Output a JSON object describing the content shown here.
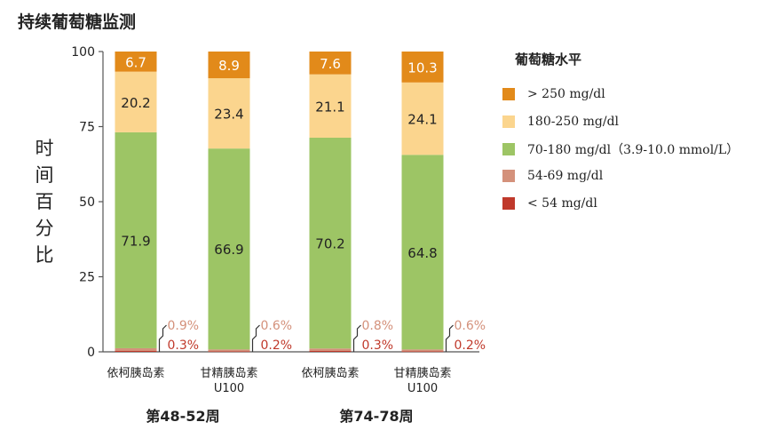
{
  "chart_data": {
    "type": "bar",
    "stacked": true,
    "title": "持续葡萄糖监测",
    "ylabel": "时间百分比",
    "ylim": [
      0,
      100
    ],
    "yticks": [
      0,
      25,
      50,
      75,
      100
    ],
    "categories": [
      {
        "label": [
          "依柯胰岛素"
        ],
        "group": "第48-52周"
      },
      {
        "label": [
          "甘精胰岛素",
          "U100"
        ],
        "group": "第48-52周"
      },
      {
        "label": [
          "依柯胰岛素"
        ],
        "group": "第74-78周"
      },
      {
        "label": [
          "甘精胰岛素",
          "U100"
        ],
        "group": "第74-78周"
      }
    ],
    "groups": [
      "第48-52周",
      "第74-78周"
    ],
    "legend_title": "葡萄糖水平",
    "series": [
      {
        "name": "< 54 mg/dl",
        "color": "#c0392b",
        "values": [
          0.3,
          0.2,
          0.3,
          0.2
        ],
        "labels": [
          "0.3%",
          "0.2%",
          "0.3%",
          "0.2%"
        ],
        "label_style": "outside"
      },
      {
        "name": "54-69 mg/dl",
        "color": "#d4917b",
        "values": [
          0.9,
          0.6,
          0.8,
          0.6
        ],
        "labels": [
          "0.9%",
          "0.6%",
          "0.8%",
          "0.6%"
        ],
        "label_style": "outside"
      },
      {
        "name": "70-180 mg/dl（3.9-10.0 mmol/L）",
        "color": "#9dc565",
        "values": [
          71.9,
          66.9,
          70.2,
          64.8
        ],
        "labels": [
          "71.9",
          "66.9",
          "70.2",
          "64.8"
        ],
        "label_style": "inside"
      },
      {
        "name": "180-250 mg/dl",
        "color": "#fbd58e",
        "values": [
          20.2,
          23.4,
          21.1,
          24.1
        ],
        "labels": [
          "20.2",
          "23.4",
          "21.1",
          "24.1"
        ],
        "label_style": "inside"
      },
      {
        "name": "> 250 mg/dl",
        "color": "#e28a1a",
        "values": [
          6.7,
          8.9,
          7.6,
          10.3
        ],
        "labels": [
          "6.7",
          "8.9",
          "7.6",
          "10.3"
        ],
        "label_style": "inside-light"
      }
    ],
    "grid": false,
    "legend_position": "right"
  }
}
